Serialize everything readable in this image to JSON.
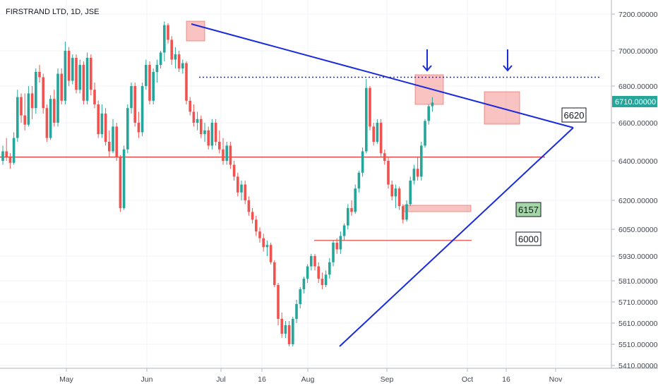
{
  "chart_data": {
    "type": "candlestick",
    "title": "FIRSTRAND LTD, 1D, JSE",
    "y_ticks": [
      "7200.00000",
      "7000.00000",
      "6800.00000",
      "6600.00000",
      "6400.00000",
      "6200.00000",
      "6050.00000",
      "5930.00000",
      "5810.00000",
      "5710.00000",
      "5610.00000",
      "5510.00000",
      "5410.00000"
    ],
    "x_ticks": [
      "May",
      "Jun",
      "Jul",
      "16",
      "Aug",
      "Sep",
      "Oct",
      "16",
      "Nov"
    ],
    "current_price_label": "6710.00000",
    "levels": {
      "support": 6420,
      "resistance_dotted": 6850,
      "zone_low": 6150,
      "breakout": 6000
    },
    "annotations": [
      {
        "text": "6620",
        "color": "#ffffff"
      },
      {
        "text": "6157",
        "color": "#a5d6a7"
      },
      {
        "text": "6000",
        "color": "#ffffff"
      }
    ],
    "colors": {
      "up": "#26a69a",
      "down": "#ef5350",
      "trend": "#1a2bdc",
      "support": "#e53935"
    },
    "candles": [
      [
        6400,
        6480,
        6380,
        6450
      ],
      [
        6450,
        6520,
        6400,
        6420
      ],
      [
        6420,
        6440,
        6360,
        6390
      ],
      [
        6390,
        6550,
        6380,
        6520
      ],
      [
        6520,
        6780,
        6500,
        6740
      ],
      [
        6740,
        6760,
        6600,
        6640
      ],
      [
        6640,
        6760,
        6560,
        6590
      ],
      [
        6590,
        6800,
        6580,
        6760
      ],
      [
        6760,
        6800,
        6620,
        6680
      ],
      [
        6680,
        6900,
        6650,
        6880
      ],
      [
        6880,
        6920,
        6820,
        6850
      ],
      [
        6850,
        6870,
        6650,
        6680
      ],
      [
        6680,
        6700,
        6500,
        6520
      ],
      [
        6520,
        6750,
        6510,
        6730
      ],
      [
        6730,
        6780,
        6580,
        6600
      ],
      [
        6600,
        6900,
        6580,
        6870
      ],
      [
        6870,
        6900,
        6700,
        6720
      ],
      [
        6720,
        7050,
        6700,
        7000
      ],
      [
        7000,
        7020,
        6800,
        6830
      ],
      [
        6830,
        6980,
        6810,
        6960
      ],
      [
        6960,
        6980,
        6760,
        6780
      ],
      [
        6780,
        6950,
        6760,
        6920
      ],
      [
        6920,
        6940,
        6700,
        6720
      ],
      [
        6720,
        6990,
        6700,
        6960
      ],
      [
        6960,
        6980,
        6750,
        6780
      ],
      [
        6780,
        6820,
        6680,
        6700
      ],
      [
        6700,
        6720,
        6520,
        6540
      ],
      [
        6540,
        6700,
        6520,
        6650
      ],
      [
        6650,
        6680,
        6480,
        6500
      ],
      [
        6500,
        6560,
        6420,
        6450
      ],
      [
        6450,
        6620,
        6440,
        6580
      ],
      [
        6580,
        6600,
        6400,
        6420
      ],
      [
        6420,
        6430,
        6140,
        6160
      ],
      [
        6160,
        6480,
        6150,
        6460
      ],
      [
        6460,
        6700,
        6440,
        6680
      ],
      [
        6680,
        6820,
        6650,
        6800
      ],
      [
        6800,
        6820,
        6580,
        6600
      ],
      [
        6600,
        6660,
        6520,
        6550
      ],
      [
        6550,
        6820,
        6530,
        6800
      ],
      [
        6800,
        6950,
        6780,
        6920
      ],
      [
        6920,
        6940,
        6700,
        6720
      ],
      [
        6720,
        6900,
        6700,
        6880
      ],
      [
        6880,
        6950,
        6820,
        6920
      ],
      [
        6920,
        7000,
        6900,
        6990
      ],
      [
        6990,
        7160,
        6940,
        7140
      ],
      [
        7140,
        7150,
        7040,
        7060
      ],
      [
        7060,
        7080,
        6920,
        6950
      ],
      [
        6950,
        7020,
        6900,
        6980
      ],
      [
        6980,
        7000,
        6880,
        6900
      ],
      [
        6900,
        6950,
        6870,
        6930
      ],
      [
        6930,
        6940,
        6700,
        6720
      ],
      [
        6720,
        6740,
        6640,
        6660
      ],
      [
        6660,
        6700,
        6580,
        6600
      ],
      [
        6600,
        6660,
        6560,
        6620
      ],
      [
        6620,
        6640,
        6520,
        6540
      ],
      [
        6540,
        6600,
        6500,
        6560
      ],
      [
        6560,
        6580,
        6460,
        6480
      ],
      [
        6480,
        6620,
        6460,
        6600
      ],
      [
        6600,
        6620,
        6480,
        6500
      ],
      [
        6500,
        6560,
        6440,
        6460
      ],
      [
        6460,
        6520,
        6380,
        6400
      ],
      [
        6400,
        6500,
        6380,
        6480
      ],
      [
        6480,
        6500,
        6360,
        6380
      ],
      [
        6380,
        6400,
        6300,
        6320
      ],
      [
        6320,
        6340,
        6220,
        6240
      ],
      [
        6240,
        6300,
        6200,
        6280
      ],
      [
        6280,
        6300,
        6180,
        6200
      ],
      [
        6200,
        6220,
        6120,
        6140
      ],
      [
        6140,
        6160,
        6080,
        6100
      ],
      [
        6100,
        6120,
        6020,
        6040
      ],
      [
        6040,
        6060,
        5990,
        6010
      ],
      [
        6010,
        6030,
        5950,
        5970
      ],
      [
        5970,
        6000,
        5930,
        5980
      ],
      [
        5980,
        5990,
        5890,
        5900
      ],
      [
        5900,
        5910,
        5780,
        5790
      ],
      [
        5790,
        5800,
        5600,
        5630
      ],
      [
        5630,
        5660,
        5540,
        5560
      ],
      [
        5560,
        5620,
        5540,
        5600
      ],
      [
        5600,
        5620,
        5500,
        5510
      ],
      [
        5510,
        5640,
        5500,
        5630
      ],
      [
        5630,
        5720,
        5610,
        5700
      ],
      [
        5700,
        5780,
        5680,
        5770
      ],
      [
        5770,
        5830,
        5750,
        5820
      ],
      [
        5820,
        5890,
        5800,
        5880
      ],
      [
        5880,
        5940,
        5860,
        5930
      ],
      [
        5930,
        5940,
        5860,
        5880
      ],
      [
        5880,
        5900,
        5800,
        5820
      ],
      [
        5820,
        5850,
        5770,
        5790
      ],
      [
        5790,
        5860,
        5780,
        5840
      ],
      [
        5840,
        5920,
        5820,
        5900
      ],
      [
        5900,
        6000,
        5880,
        5990
      ],
      [
        5990,
        6010,
        5940,
        5960
      ],
      [
        5960,
        6040,
        5940,
        6020
      ],
      [
        6020,
        6080,
        6000,
        6070
      ],
      [
        6070,
        6180,
        6050,
        6160
      ],
      [
        6160,
        6200,
        6120,
        6140
      ],
      [
        6140,
        6280,
        6130,
        6260
      ],
      [
        6260,
        6350,
        6240,
        6340
      ],
      [
        6340,
        6470,
        6320,
        6450
      ],
      [
        6450,
        6840,
        6440,
        6790
      ],
      [
        6790,
        6800,
        6560,
        6580
      ],
      [
        6580,
        6600,
        6480,
        6500
      ],
      [
        6500,
        6620,
        6490,
        6600
      ],
      [
        6600,
        6620,
        6420,
        6440
      ],
      [
        6440,
        6460,
        6380,
        6400
      ],
      [
        6400,
        6420,
        6260,
        6280
      ],
      [
        6280,
        6300,
        6200,
        6220
      ],
      [
        6220,
        6280,
        6160,
        6260
      ],
      [
        6260,
        6270,
        6150,
        6170
      ],
      [
        6170,
        6180,
        6080,
        6100
      ],
      [
        6100,
        6200,
        6090,
        6180
      ],
      [
        6180,
        6320,
        6170,
        6300
      ],
      [
        6300,
        6380,
        6280,
        6360
      ],
      [
        6360,
        6420,
        6300,
        6320
      ],
      [
        6320,
        6500,
        6300,
        6480
      ],
      [
        6480,
        6620,
        6470,
        6610
      ],
      [
        6610,
        6700,
        6590,
        6690
      ],
      [
        6690,
        6740,
        6660,
        6710
      ]
    ]
  }
}
